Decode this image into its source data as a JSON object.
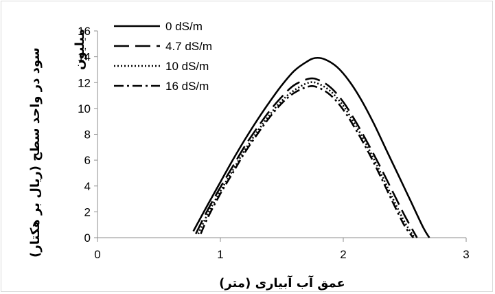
{
  "chart_data": {
    "type": "line",
    "title": "",
    "xlabel": "عمق آب آبیاری (متر)",
    "ylabel": "سود در واحد سطح (ریال بر هکتار)",
    "ylabel_unit": "میلیون",
    "xlim": [
      0,
      3
    ],
    "ylim": [
      0,
      16
    ],
    "x_ticks": [
      "0",
      "1",
      "2",
      "3"
    ],
    "y_ticks": [
      "0",
      "2",
      "4",
      "6",
      "8",
      "10",
      "12",
      "14",
      "16"
    ],
    "grid": false,
    "legend_position": "top-left",
    "series": [
      {
        "name": "0 dS/m",
        "style": "solid",
        "x": [
          0.78,
          0.9,
          1.0,
          1.1,
          1.2,
          1.3,
          1.4,
          1.5,
          1.6,
          1.7,
          1.77,
          1.85,
          1.95,
          2.05,
          2.15,
          2.25,
          2.35,
          2.45,
          2.55,
          2.65,
          2.7
        ],
        "y": [
          0.5,
          2.6,
          4.3,
          6.0,
          7.6,
          9.1,
          10.5,
          11.8,
          12.9,
          13.6,
          13.9,
          13.8,
          13.2,
          12.1,
          10.6,
          8.8,
          6.8,
          4.8,
          2.8,
          0.8,
          0.0
        ]
      },
      {
        "name": "4.7 dS/m",
        "style": "long-dash",
        "x": [
          0.8,
          0.9,
          1.0,
          1.1,
          1.2,
          1.3,
          1.4,
          1.5,
          1.6,
          1.72,
          1.8,
          1.9,
          2.0,
          2.1,
          2.2,
          2.3,
          2.4,
          2.5,
          2.6
        ],
        "y": [
          0.3,
          2.2,
          3.9,
          5.5,
          7.1,
          8.5,
          9.8,
          10.9,
          11.8,
          12.3,
          12.2,
          11.6,
          10.5,
          9.0,
          7.3,
          5.5,
          3.6,
          1.7,
          0.0
        ]
      },
      {
        "name": "10 dS/m",
        "style": "dotted",
        "x": [
          0.82,
          0.9,
          1.0,
          1.1,
          1.2,
          1.3,
          1.4,
          1.5,
          1.6,
          1.72,
          1.8,
          1.9,
          2.0,
          2.1,
          2.2,
          2.3,
          2.4,
          2.5,
          2.58
        ],
        "y": [
          0.3,
          1.9,
          3.6,
          5.2,
          6.8,
          8.2,
          9.5,
          10.6,
          11.4,
          12.0,
          11.9,
          11.3,
          10.2,
          8.7,
          7.0,
          5.1,
          3.1,
          1.2,
          0.0
        ]
      },
      {
        "name": "16 dS/m",
        "style": "dash-dot",
        "x": [
          0.84,
          0.9,
          1.0,
          1.1,
          1.2,
          1.3,
          1.4,
          1.5,
          1.6,
          1.72,
          1.8,
          1.9,
          2.0,
          2.1,
          2.2,
          2.3,
          2.4,
          2.5,
          2.57
        ],
        "y": [
          0.3,
          1.6,
          3.4,
          5.0,
          6.6,
          8.0,
          9.3,
          10.4,
          11.2,
          11.7,
          11.6,
          11.0,
          9.9,
          8.4,
          6.7,
          4.8,
          2.8,
          0.9,
          0.0
        ]
      }
    ]
  }
}
